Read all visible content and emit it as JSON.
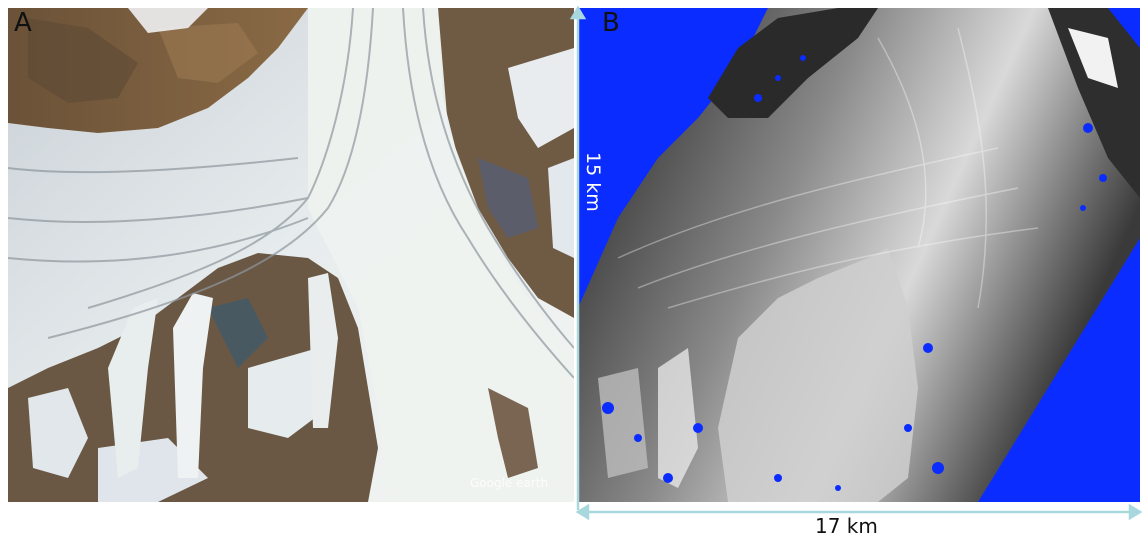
{
  "figure": {
    "panel_a_label": "A",
    "panel_b_label": "B",
    "vertical_scale_label": "15 km",
    "horizontal_scale_label": "17 km",
    "watermark": "Google earth"
  },
  "colors": {
    "mask_blue": "#0b2cff",
    "scale_bar": "#a9d7de",
    "ice_light": "#e9eef0",
    "rock_brown": "#7a5a3c"
  }
}
